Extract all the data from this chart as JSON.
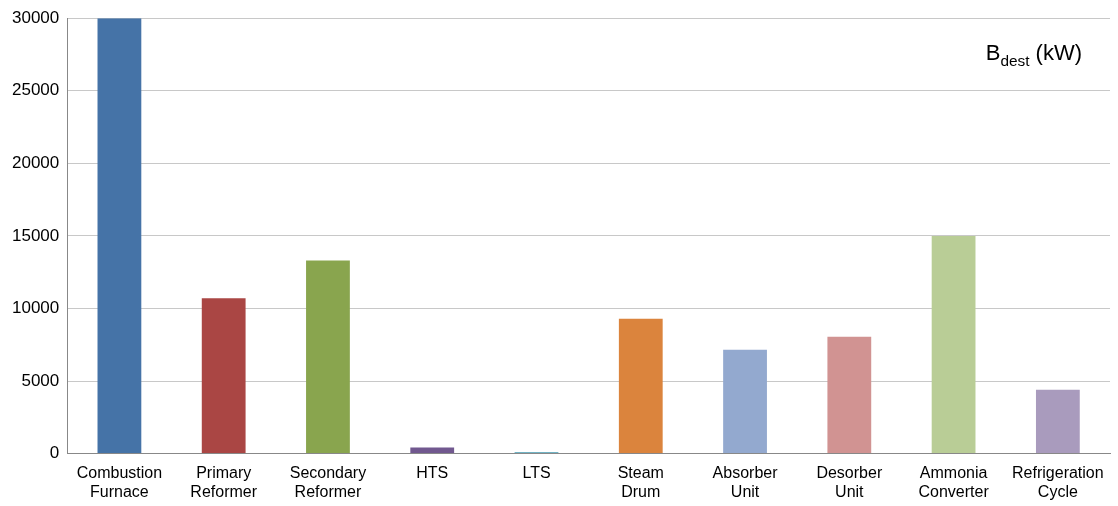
{
  "chart_data": {
    "type": "bar",
    "title": "B$_{dest}$ (kW)",
    "categories": [
      "Combustion Furnace",
      "Primary Reformer",
      "Secondary Reformer",
      "HTS",
      "LTS",
      "Steam Drum",
      "Absorber Unit",
      "Desorber Unit",
      "Ammonia Converter",
      "Refrigeration Cycle"
    ],
    "values": [
      30000,
      10700,
      13300,
      420,
      100,
      9300,
      7150,
      8050,
      15000,
      4400
    ],
    "colors": [
      "#4573a7",
      "#aa4644",
      "#89a54e",
      "#71588f",
      "#4298af",
      "#db843d",
      "#93a9cf",
      "#d19392",
      "#b9cd96",
      "#a99bbd"
    ],
    "ylim": [
      0,
      30000
    ],
    "yticks": [
      0,
      5000,
      10000,
      15000,
      20000,
      25000,
      30000
    ],
    "grid": "y",
    "legend": false
  }
}
